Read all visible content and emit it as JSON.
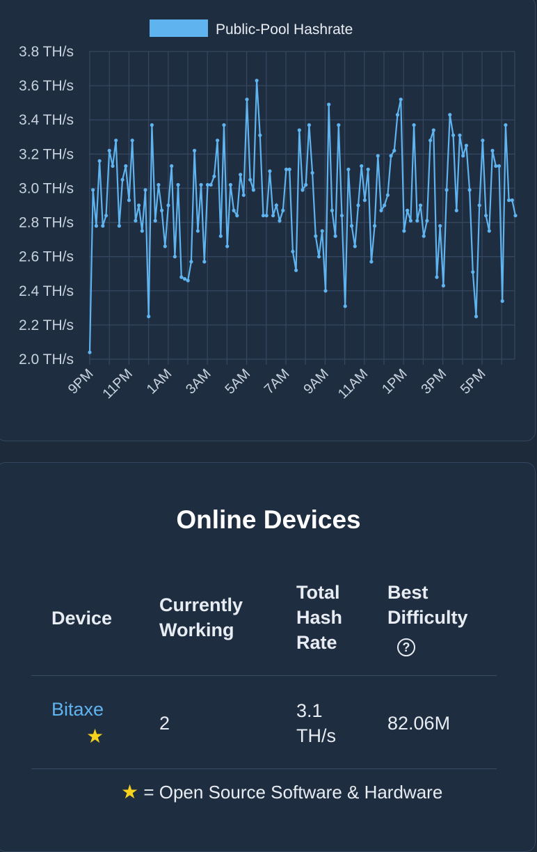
{
  "chart_data": {
    "type": "line",
    "legend": {
      "label": "Public-Pool Hashrate",
      "placement": "top-center"
    },
    "series": [
      {
        "name": "Public-Pool Hashrate",
        "unit": "TH/s",
        "color": "#5fb4f0"
      }
    ],
    "y_ticks": [
      "2.0 TH/s",
      "2.2 TH/s",
      "2.4 TH/s",
      "2.6 TH/s",
      "2.8 TH/s",
      "3.0 TH/s",
      "3.2 TH/s",
      "3.4 TH/s",
      "3.6 TH/s",
      "3.8 TH/s"
    ],
    "ylim": [
      2.0,
      3.8
    ],
    "x_ticks": [
      "9PM",
      "11PM",
      "1AM",
      "3AM",
      "5AM",
      "7AM",
      "9AM",
      "11AM",
      "1PM",
      "3PM",
      "5PM"
    ],
    "grid": true,
    "values": [
      2.04,
      2.99,
      2.78,
      3.16,
      2.78,
      2.84,
      3.22,
      3.13,
      3.28,
      2.78,
      3.05,
      3.13,
      2.93,
      3.28,
      2.81,
      2.9,
      2.75,
      2.99,
      2.25,
      3.37,
      2.81,
      3.02,
      2.87,
      2.66,
      2.9,
      3.13,
      2.6,
      3.02,
      2.48,
      2.47,
      2.46,
      2.57,
      3.22,
      2.75,
      3.02,
      2.57,
      3.02,
      3.02,
      3.07,
      3.28,
      2.72,
      3.37,
      2.66,
      3.02,
      2.87,
      2.84,
      3.08,
      2.96,
      3.52,
      3.05,
      2.99,
      3.63,
      3.31,
      2.84,
      2.84,
      3.1,
      2.84,
      2.9,
      2.81,
      2.87,
      3.11,
      3.11,
      2.63,
      2.52,
      3.34,
      2.99,
      3.02,
      3.37,
      3.09,
      2.72,
      2.6,
      2.75,
      2.4,
      3.49,
      2.87,
      2.72,
      3.37,
      2.84,
      2.31,
      3.11,
      2.78,
      2.66,
      2.9,
      3.13,
      2.93,
      3.11,
      2.57,
      2.78,
      3.19,
      2.87,
      2.9,
      2.96,
      3.19,
      3.22,
      3.43,
      3.52,
      2.75,
      2.87,
      2.81,
      3.37,
      2.81,
      2.9,
      2.72,
      2.81,
      3.28,
      3.34,
      2.48,
      2.78,
      2.43,
      2.99,
      3.43,
      3.31,
      2.87,
      3.31,
      3.19,
      3.25,
      2.99,
      2.51,
      2.25,
      2.9,
      3.28,
      2.84,
      2.75,
      3.22,
      3.13,
      3.13,
      2.34,
      3.37,
      2.93,
      2.93,
      2.84
    ]
  },
  "devices": {
    "title": "Online Devices",
    "headers": {
      "device": "Device",
      "working_1": "Currently",
      "working_2": "Working",
      "hash_1": "Total",
      "hash_2": "Hash",
      "hash_3": "Rate",
      "best_1": "Best",
      "best_2": "Difficulty",
      "help_glyph": "?"
    },
    "rows": [
      {
        "device": "Bitaxe",
        "star": "★",
        "working": "2",
        "hash_1": "3.1",
        "hash_2": "TH/s",
        "best": "82.06M"
      }
    ],
    "footnote_star": "★",
    "footnote": " = Open Source Software & Hardware"
  }
}
